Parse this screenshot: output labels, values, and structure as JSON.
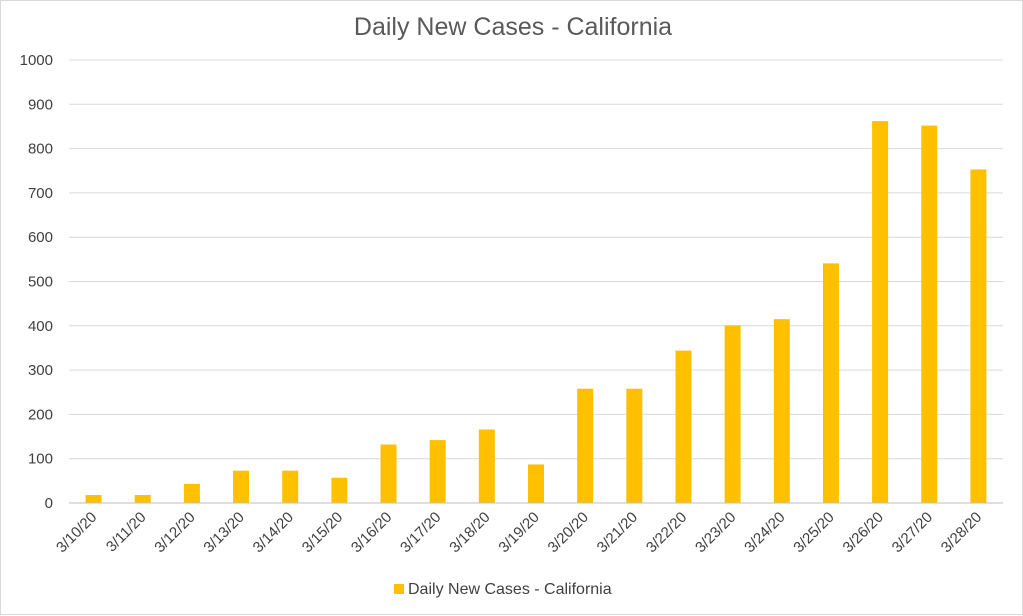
{
  "chart_data": {
    "type": "bar",
    "title": "Daily New Cases - California",
    "xlabel": "",
    "ylabel": "",
    "categories": [
      "3/10/20",
      "3/11/20",
      "3/12/20",
      "3/13/20",
      "3/14/20",
      "3/15/20",
      "3/16/20",
      "3/17/20",
      "3/18/20",
      "3/19/20",
      "3/20/20",
      "3/21/20",
      "3/22/20",
      "3/23/20",
      "3/24/20",
      "3/25/20",
      "3/26/20",
      "3/27/20",
      "3/28/20"
    ],
    "series": [
      {
        "name": "Daily New Cases - California",
        "color": "#FFC000",
        "values": [
          18,
          18,
          43,
          73,
          73,
          57,
          132,
          142,
          166,
          87,
          258,
          258,
          344,
          401,
          415,
          541,
          862,
          852,
          753
        ]
      }
    ],
    "ylim": [
      0,
      1000
    ],
    "yticks": [
      0,
      100,
      200,
      300,
      400,
      500,
      600,
      700,
      800,
      900,
      1000
    ],
    "grid": true,
    "legend_position": "bottom"
  }
}
